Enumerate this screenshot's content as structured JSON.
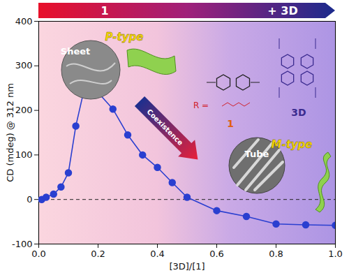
{
  "chart_data": {
    "type": "line",
    "x_label": "[3D]/[1]",
    "y_label": "CD (mdeg) @ 312 nm",
    "x": [
      0.01,
      0.025,
      0.05,
      0.075,
      0.1,
      0.125,
      0.15,
      0.2,
      0.25,
      0.3,
      0.35,
      0.4,
      0.45,
      0.5,
      0.6,
      0.7,
      0.8,
      0.9,
      1.0
    ],
    "values": [
      0,
      5,
      12,
      28,
      60,
      165,
      238,
      240,
      203,
      145,
      100,
      72,
      38,
      5,
      -25,
      -38,
      -55,
      -57,
      -58
    ],
    "color": "#2a3fd0",
    "marker": "circle",
    "line_style": "solid",
    "xlim": [
      0,
      1
    ],
    "ylim": [
      -100,
      400
    ],
    "xticks": [
      {
        "value": 0,
        "label": "0.0"
      },
      0.2,
      0.4,
      0.6,
      0.8,
      {
        "value": 1,
        "label": "1.0"
      }
    ],
    "yticks": [
      -100,
      0,
      100,
      200,
      300,
      400
    ],
    "grid": false,
    "reference_lines": [
      {
        "y": 0,
        "line_style": "dashed"
      }
    ],
    "annotations": {
      "start": "1",
      "end": "+ 3D",
      "sheet": "Sheet",
      "p_type": "P-type",
      "coexistence": "Coexistence",
      "tube": "Tube",
      "m_type": "M-type",
      "substituent": "R =",
      "compound_1": "1",
      "compound_3D": "3D"
    }
  }
}
